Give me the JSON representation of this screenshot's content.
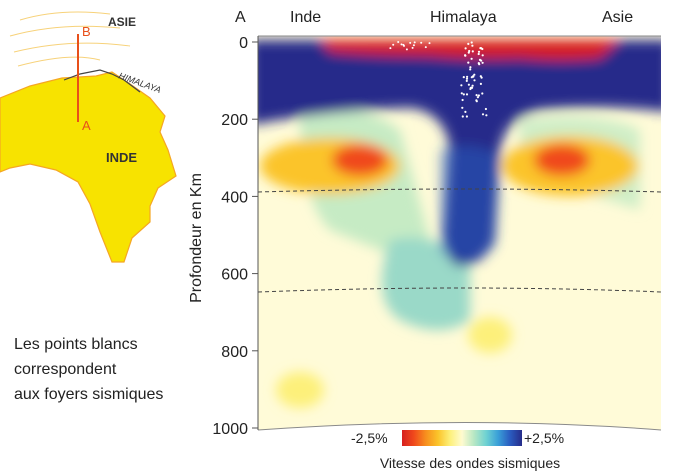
{
  "inset_map": {
    "label_asie": "ASIE",
    "label_himalaya": "HIMALAYA",
    "label_inde": "INDE",
    "point_a": "A",
    "point_b": "B",
    "colors": {
      "land": "#f7e300",
      "coast": "#f5a623",
      "section_line": "#e8501a",
      "text_dark": "#333333"
    }
  },
  "note": {
    "lines": [
      "Les points blancs",
      "correspondent",
      "aux foyers sismiques"
    ]
  },
  "section": {
    "label_a": "A",
    "label_inde": "Inde",
    "label_himalaya": "Himalaya",
    "label_asie": "Asie",
    "ylabel": "Profondeur en Km",
    "yticks": [
      "0",
      "200",
      "400",
      "600",
      "800",
      "1000"
    ]
  },
  "legend": {
    "min_label": "-2,5%",
    "max_label": "+2,5%",
    "caption": "Vitesse des ondes sismiques",
    "colors": [
      "#d61f1f",
      "#f04a1c",
      "#f7901e",
      "#fbc42a",
      "#fdf07a",
      "#fffbd0",
      "#b7e7c4",
      "#6fd2d2",
      "#3aa0d8",
      "#2a5cc0",
      "#262c8a"
    ]
  }
}
